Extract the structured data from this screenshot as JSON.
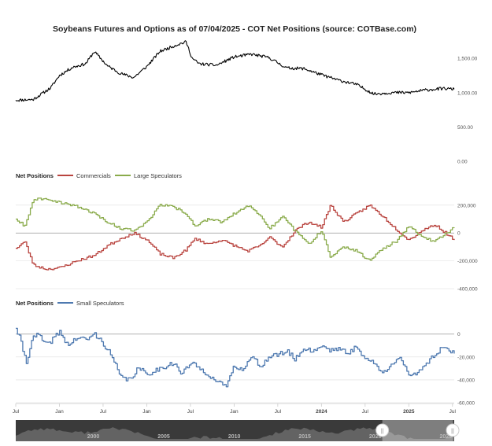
{
  "colors": {
    "price": "#000000",
    "commercials": "#b9443f",
    "large_speculators": "#8aab4b",
    "small_speculators": "#4e79b0",
    "grid": "#dddddd",
    "zero_line": "#999999",
    "navigator_bg": "#3a3a3a",
    "navigator_area": "#6b6b6b"
  },
  "chart_data": [
    {
      "type": "line",
      "title": "Soybeans Futures and Options as of 07/04/2025 - COT Net Positions (source: COTBase.com)",
      "y_ticks": [
        {
          "value": 1500,
          "label": "1,500.00"
        },
        {
          "value": 1000,
          "label": "1,000.00"
        },
        {
          "value": 500,
          "label": "500.00"
        },
        {
          "value": 0,
          "label": "0.00"
        }
      ],
      "ylim": [
        0,
        1800
      ],
      "grid": false,
      "series": [
        {
          "key": "price",
          "color_key": "price",
          "x": [
            2020.5,
            2020.7,
            2020.9,
            2021.0,
            2021.15,
            2021.3,
            2021.4,
            2021.55,
            2021.7,
            2021.85,
            2022.0,
            2022.15,
            2022.35,
            2022.45,
            2022.52,
            2022.6,
            2022.8,
            2023.0,
            2023.2,
            2023.4,
            2023.6,
            2023.8,
            2024.0,
            2024.2,
            2024.4,
            2024.6,
            2024.8,
            2025.0,
            2025.2,
            2025.4,
            2025.52
          ],
          "values": [
            890,
            900,
            1070,
            1250,
            1370,
            1420,
            1600,
            1390,
            1280,
            1220,
            1380,
            1600,
            1700,
            1740,
            1500,
            1420,
            1400,
            1520,
            1560,
            1510,
            1360,
            1350,
            1260,
            1180,
            1120,
            980,
            1000,
            1000,
            1040,
            1060,
            1050
          ]
        }
      ]
    },
    {
      "type": "line",
      "legend_title": "Net Positions",
      "legend_position": "top-left",
      "y_ticks": [
        {
          "value": 200000,
          "label": "200,000"
        },
        {
          "value": 0,
          "label": "0"
        },
        {
          "value": -200000,
          "label": "-200,000"
        },
        {
          "value": -400000,
          "label": "-400,000"
        }
      ],
      "ylim": [
        -400000,
        250000
      ],
      "grid": true,
      "series": [
        {
          "name": "Commercials",
          "key": "commercials",
          "color_key": "commercials",
          "x": [
            2020.5,
            2020.6,
            2020.7,
            2020.85,
            2021.0,
            2021.2,
            2021.4,
            2021.55,
            2021.7,
            2021.85,
            2022.0,
            2022.15,
            2022.3,
            2022.45,
            2022.55,
            2022.7,
            2022.85,
            2023.0,
            2023.15,
            2023.3,
            2023.4,
            2023.55,
            2023.7,
            2023.85,
            2024.0,
            2024.1,
            2024.25,
            2024.4,
            2024.55,
            2024.7,
            2024.85,
            2025.0,
            2025.15,
            2025.3,
            2025.52
          ],
          "values": [
            -110000,
            -60000,
            -230000,
            -260000,
            -250000,
            -200000,
            -160000,
            -90000,
            -40000,
            0,
            -50000,
            -150000,
            -180000,
            -120000,
            -40000,
            -80000,
            -50000,
            -90000,
            -130000,
            -90000,
            -30000,
            -100000,
            20000,
            80000,
            40000,
            200000,
            80000,
            140000,
            200000,
            120000,
            30000,
            -50000,
            20000,
            60000,
            -50000
          ]
        },
        {
          "name": "Large Speculators",
          "key": "large_speculators",
          "color_key": "large_speculators",
          "x": [
            2020.5,
            2020.6,
            2020.7,
            2020.85,
            2021.0,
            2021.2,
            2021.4,
            2021.55,
            2021.7,
            2021.85,
            2022.0,
            2022.15,
            2022.3,
            2022.45,
            2022.55,
            2022.7,
            2022.85,
            2023.0,
            2023.15,
            2023.3,
            2023.4,
            2023.55,
            2023.7,
            2023.85,
            2024.0,
            2024.1,
            2024.25,
            2024.4,
            2024.55,
            2024.7,
            2024.85,
            2025.0,
            2025.15,
            2025.3,
            2025.52
          ],
          "values": [
            100000,
            50000,
            240000,
            250000,
            220000,
            190000,
            140000,
            80000,
            30000,
            20000,
            80000,
            200000,
            190000,
            140000,
            50000,
            100000,
            80000,
            140000,
            200000,
            130000,
            30000,
            120000,
            10000,
            -80000,
            20000,
            -180000,
            -100000,
            -130000,
            -200000,
            -110000,
            -60000,
            50000,
            -30000,
            -60000,
            40000
          ]
        }
      ]
    },
    {
      "type": "line",
      "legend_title": "Net Positions",
      "legend_position": "top-left",
      "y_ticks": [
        {
          "value": 0,
          "label": "0"
        },
        {
          "value": -20000,
          "label": "-20,000"
        },
        {
          "value": -40000,
          "label": "-40,000"
        },
        {
          "value": -60000,
          "label": "-60,000"
        }
      ],
      "ylim": [
        -60000,
        6000
      ],
      "grid": true,
      "series": [
        {
          "name": "Small Speculators",
          "key": "small_speculators",
          "color_key": "small_speculators",
          "x": [
            2020.5,
            2020.55,
            2020.62,
            2020.68,
            2020.75,
            2020.85,
            2021.0,
            2021.1,
            2021.2,
            2021.3,
            2021.4,
            2021.5,
            2021.6,
            2021.7,
            2021.8,
            2021.9,
            2022.0,
            2022.15,
            2022.3,
            2022.4,
            2022.5,
            2022.6,
            2022.7,
            2022.8,
            2022.9,
            2023.0,
            2023.1,
            2023.2,
            2023.3,
            2023.4,
            2023.5,
            2023.6,
            2023.7,
            2023.8,
            2023.9,
            2024.0,
            2024.1,
            2024.2,
            2024.3,
            2024.4,
            2024.5,
            2024.6,
            2024.7,
            2024.8,
            2024.9,
            2025.0,
            2025.1,
            2025.2,
            2025.3,
            2025.4,
            2025.52
          ],
          "values": [
            5000,
            -5000,
            -25000,
            -5000,
            0,
            -10000,
            2000,
            -10000,
            -3000,
            -5000,
            0,
            -8000,
            -20000,
            -38000,
            -40000,
            -30000,
            -35000,
            -30000,
            -25000,
            -35000,
            -25000,
            -30000,
            -35000,
            -42000,
            -46000,
            -28000,
            -30000,
            -20000,
            -28000,
            -20000,
            -18000,
            -15000,
            -22000,
            -12000,
            -15000,
            -10000,
            -14000,
            -12000,
            -18000,
            -10000,
            -22000,
            -25000,
            -35000,
            -25000,
            -20000,
            -38000,
            -33000,
            -25000,
            -18000,
            -10000,
            -17000
          ]
        }
      ],
      "x_ticks": [
        {
          "value": 2020.5,
          "label": "Jul"
        },
        {
          "value": 2021.0,
          "label": "Jan"
        },
        {
          "value": 2021.5,
          "label": "Jul"
        },
        {
          "value": 2022.0,
          "label": "Jan"
        },
        {
          "value": 2022.5,
          "label": "Jul"
        },
        {
          "value": 2023.0,
          "label": "Jan"
        },
        {
          "value": 2023.5,
          "label": "Jul"
        },
        {
          "value": 2024.0,
          "label": "2024"
        },
        {
          "value": 2024.5,
          "label": "Jul"
        },
        {
          "value": 2025.0,
          "label": "2025"
        },
        {
          "value": 2025.5,
          "label": "Jul"
        }
      ]
    }
  ],
  "x_range": [
    2020.5,
    2025.52
  ],
  "navigator": {
    "labels": [
      {
        "year": 2000,
        "label": "2000"
      },
      {
        "year": 2005,
        "label": "2005"
      },
      {
        "year": 2010,
        "label": "2010"
      },
      {
        "year": 2015,
        "label": "2015"
      },
      {
        "year": 2020,
        "label": "2020"
      },
      {
        "year": 2025,
        "label": "2025"
      }
    ],
    "range_years": [
      1994.5,
      2025.6
    ],
    "selected_years": [
      2020.5,
      2025.52
    ],
    "handle_symbol": "||"
  }
}
